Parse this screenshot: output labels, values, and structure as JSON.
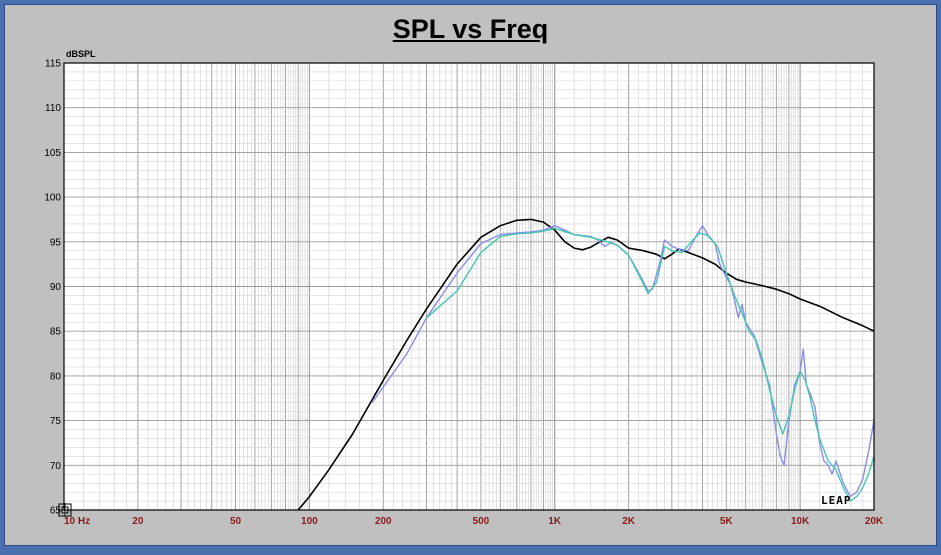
{
  "chart_data": {
    "type": "line",
    "title": "SPL vs Freq",
    "ylabel": "dBSPL",
    "xlabel": "",
    "x_scale": "log",
    "xlim": [
      10,
      20000
    ],
    "ylim": [
      65,
      115
    ],
    "y_ticks": [
      "115",
      "110",
      "105",
      "100",
      "95",
      "90",
      "85",
      "80",
      "75",
      "70",
      "65"
    ],
    "x_ticks": [
      {
        "v": 10,
        "label": "10 Hz"
      },
      {
        "v": 20,
        "label": "20"
      },
      {
        "v": 50,
        "label": "50"
      },
      {
        "v": 100,
        "label": "100"
      },
      {
        "v": 200,
        "label": "200"
      },
      {
        "v": 500,
        "label": "500"
      },
      {
        "v": 1000,
        "label": "1K"
      },
      {
        "v": 2000,
        "label": "2K"
      },
      {
        "v": 5000,
        "label": "5K"
      },
      {
        "v": 10000,
        "label": "10K"
      },
      {
        "v": 20000,
        "label": "20K"
      }
    ],
    "grid": true,
    "series": [
      {
        "color": "#000000",
        "points": [
          [
            90,
            65
          ],
          [
            100,
            66.5
          ],
          [
            120,
            69.5
          ],
          [
            150,
            73.5
          ],
          [
            200,
            79.5
          ],
          [
            250,
            84
          ],
          [
            300,
            87.5
          ],
          [
            400,
            92.5
          ],
          [
            500,
            95.5
          ],
          [
            600,
            96.8
          ],
          [
            700,
            97.4
          ],
          [
            800,
            97.5
          ],
          [
            900,
            97.2
          ],
          [
            1000,
            96.3
          ],
          [
            1100,
            95
          ],
          [
            1200,
            94.3
          ],
          [
            1300,
            94.1
          ],
          [
            1400,
            94.4
          ],
          [
            1550,
            95.1
          ],
          [
            1650,
            95.5
          ],
          [
            1800,
            95.2
          ],
          [
            2000,
            94.3
          ],
          [
            2300,
            94
          ],
          [
            2600,
            93.6
          ],
          [
            2800,
            93.1
          ],
          [
            3000,
            93.6
          ],
          [
            3200,
            94.2
          ],
          [
            3500,
            93.8
          ],
          [
            4000,
            93.2
          ],
          [
            4500,
            92.5
          ],
          [
            5000,
            91.5
          ],
          [
            5500,
            90.8
          ],
          [
            6000,
            90.5
          ],
          [
            7000,
            90.1
          ],
          [
            8000,
            89.7
          ],
          [
            9000,
            89.2
          ],
          [
            10000,
            88.6
          ],
          [
            12000,
            87.8
          ],
          [
            15000,
            86.5
          ],
          [
            18000,
            85.6
          ],
          [
            20000,
            85
          ]
        ]
      },
      {
        "color": "#8c8cf0",
        "points": [
          [
            180,
            77
          ],
          [
            250,
            82.5
          ],
          [
            300,
            86.5
          ],
          [
            400,
            91.5
          ],
          [
            500,
            94.8
          ],
          [
            600,
            95.8
          ],
          [
            700,
            96
          ],
          [
            800,
            96.1
          ],
          [
            900,
            96.3
          ],
          [
            1000,
            96.8
          ],
          [
            1100,
            96.3
          ],
          [
            1200,
            95.8
          ],
          [
            1400,
            95.6
          ],
          [
            1500,
            95.2
          ],
          [
            1600,
            94.5
          ],
          [
            1700,
            94.9
          ],
          [
            1800,
            94.6
          ],
          [
            2000,
            93.5
          ],
          [
            2200,
            91.5
          ],
          [
            2400,
            89.5
          ],
          [
            2500,
            89.7
          ],
          [
            2700,
            93
          ],
          [
            2800,
            95.2
          ],
          [
            3000,
            94.5
          ],
          [
            3200,
            94.2
          ],
          [
            3500,
            94
          ],
          [
            3800,
            95.8
          ],
          [
            4000,
            96.8
          ],
          [
            4200,
            95.8
          ],
          [
            4500,
            94.8
          ],
          [
            4700,
            92.5
          ],
          [
            5000,
            91
          ],
          [
            5200,
            90.3
          ],
          [
            5400,
            88.5
          ],
          [
            5600,
            86.5
          ],
          [
            5800,
            88
          ],
          [
            6000,
            86
          ],
          [
            6500,
            84.5
          ],
          [
            7000,
            81.5
          ],
          [
            7500,
            79
          ],
          [
            8000,
            73.5
          ],
          [
            8300,
            71
          ],
          [
            8600,
            70
          ],
          [
            9000,
            75
          ],
          [
            9500,
            79
          ],
          [
            10000,
            80.5
          ],
          [
            10300,
            83
          ],
          [
            10600,
            79
          ],
          [
            11000,
            78
          ],
          [
            11500,
            76.5
          ],
          [
            12000,
            72.5
          ],
          [
            12500,
            70.5
          ],
          [
            13000,
            70
          ],
          [
            13500,
            69
          ],
          [
            14000,
            70.5
          ],
          [
            15000,
            68
          ],
          [
            16000,
            66.5
          ],
          [
            17000,
            67
          ],
          [
            18000,
            68.5
          ],
          [
            19000,
            71.5
          ],
          [
            20000,
            75
          ]
        ]
      },
      {
        "color": "#40c8b0",
        "points": [
          [
            300,
            86.5
          ],
          [
            400,
            89.5
          ],
          [
            500,
            93.8
          ],
          [
            600,
            95.6
          ],
          [
            700,
            95.9
          ],
          [
            800,
            96
          ],
          [
            900,
            96.2
          ],
          [
            1000,
            96.5
          ],
          [
            1200,
            95.8
          ],
          [
            1400,
            95.5
          ],
          [
            1600,
            95.1
          ],
          [
            1800,
            94.6
          ],
          [
            2000,
            93.5
          ],
          [
            2200,
            91.3
          ],
          [
            2400,
            89.2
          ],
          [
            2600,
            90.5
          ],
          [
            2800,
            94.5
          ],
          [
            3000,
            94
          ],
          [
            3300,
            93.8
          ],
          [
            3600,
            95
          ],
          [
            3900,
            96
          ],
          [
            4200,
            95.7
          ],
          [
            4600,
            94.5
          ],
          [
            5000,
            91.5
          ],
          [
            5400,
            89
          ],
          [
            5800,
            87
          ],
          [
            6200,
            85
          ],
          [
            6600,
            84
          ],
          [
            7000,
            82
          ],
          [
            7500,
            78.5
          ],
          [
            8000,
            75.5
          ],
          [
            8500,
            73.5
          ],
          [
            9000,
            75.5
          ],
          [
            9500,
            78.5
          ],
          [
            10000,
            80.5
          ],
          [
            10500,
            79.5
          ],
          [
            11000,
            77.5
          ],
          [
            11500,
            75
          ],
          [
            12000,
            73
          ],
          [
            13000,
            70.5
          ],
          [
            14000,
            69.5
          ],
          [
            15000,
            67.5
          ],
          [
            16000,
            66
          ],
          [
            17000,
            66.5
          ],
          [
            18000,
            67.5
          ],
          [
            19000,
            69
          ],
          [
            20000,
            71
          ]
        ]
      }
    ]
  },
  "logo_text": "LEAP"
}
